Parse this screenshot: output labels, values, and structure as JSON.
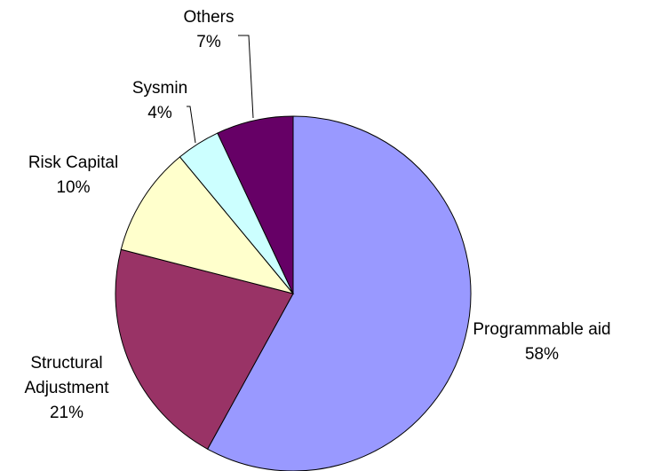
{
  "chart_data": {
    "type": "pie",
    "categories": [
      "Programmable aid",
      "Structural Adjustment",
      "Risk Capital",
      "Sysmin",
      "Others"
    ],
    "values": [
      58,
      21,
      10,
      4,
      7
    ],
    "value_labels": [
      "58%",
      "21%",
      "10%",
      "4%",
      "7%"
    ],
    "colors": [
      "#9999ff",
      "#993366",
      "#ffffcc",
      "#ccffff",
      "#660066"
    ]
  }
}
